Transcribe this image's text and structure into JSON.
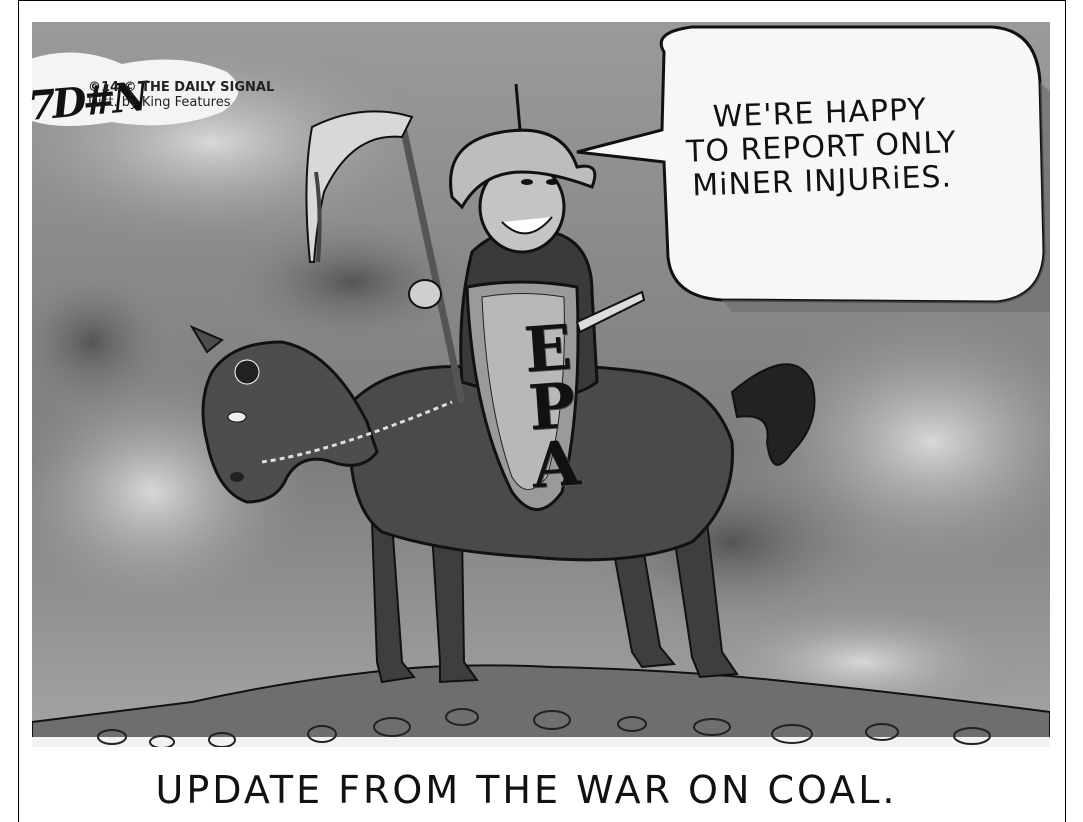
{
  "cartoon": {
    "speech_bubble": {
      "line1": "WE'RE HAPPY",
      "line2": "TO REPORT ONLY",
      "line3": "MiNER INJURiES."
    },
    "shield": {
      "letter1": "E",
      "letter2": "P",
      "letter3": "A"
    },
    "caption": "UPDATE FROM THE WAR ON COAL.",
    "signature": "7D#N",
    "credit": {
      "line1": "©14 © THE DAILY SIGNAL",
      "line2": "Dist. by King Features"
    }
  },
  "colors": {
    "sky": "#8f8f8f",
    "cloud_light": "#d2d2d2",
    "horse": "#4a4a4a",
    "ground": "#6e6e6e",
    "ink": "#111111"
  }
}
